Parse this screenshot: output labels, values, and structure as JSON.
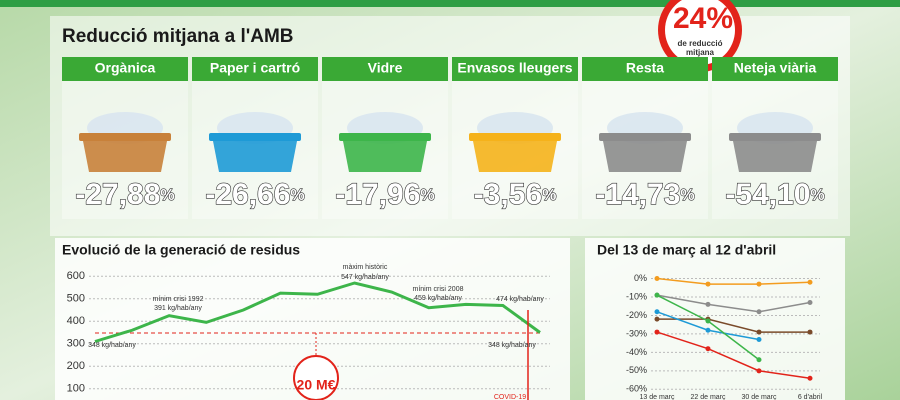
{
  "header": {
    "title": "Reducció mitjana a l'AMB",
    "badge_value": "24%",
    "badge_label": [
      "de reducció",
      "mitjana"
    ]
  },
  "cards": [
    {
      "name": "Orgànica",
      "value": "-27,88",
      "unit": "%"
    },
    {
      "name": "Paper i cartró",
      "value": "-26,66",
      "unit": "%"
    },
    {
      "name": "Vidre",
      "value": "-17,96",
      "unit": "%"
    },
    {
      "name": "Envasos lleugers",
      "value": "-3,56",
      "unit": "%"
    },
    {
      "name": "Resta",
      "value": "-14,73",
      "unit": "%"
    },
    {
      "name": "Neteja viària",
      "value": "-54,10",
      "unit": "%"
    }
  ],
  "chart_data": [
    {
      "type": "line",
      "title": "Evolució de la generació de residus",
      "categories": [
        null,
        null,
        null,
        null,
        null,
        null,
        null,
        null,
        null,
        null,
        null,
        null,
        null
      ],
      "series": [
        {
          "color": "#3db54a",
          "values": [
            310,
            360,
            425,
            395,
            450,
            525,
            520,
            570,
            530,
            460,
            475,
            470,
            350
          ]
        }
      ],
      "threshold": 348,
      "ylim": [
        50,
        650
      ],
      "yticks": [
        100,
        200,
        300,
        400,
        500,
        600
      ],
      "grid": true,
      "annotations": [
        "mínim crisi 1992",
        "391 kg/hab/any",
        "màxim històric",
        "547 kg/hab/any",
        "mínim crisi 2008",
        "459 kg/hab/any",
        "474 kg/hab/any",
        "348 kg/hab/any",
        "348 kg/hab/any",
        "COVID-19",
        "20 M€"
      ]
    },
    {
      "type": "line",
      "title": "Del 13 de març al 12 d'abril",
      "categories": [
        "13 de març",
        "22 de març",
        "30 de març",
        "6 d'abril"
      ],
      "series": [
        {
          "color": "#f39c1f",
          "values": [
            0,
            -3,
            -3,
            -2
          ]
        },
        {
          "color": "#8c8c8c",
          "values": [
            -9,
            -14,
            -18,
            -13
          ]
        },
        {
          "color": "#7a4a2a",
          "values": [
            -22,
            -22,
            -29,
            -29
          ]
        },
        {
          "color": "#1e9ad6",
          "values": [
            -18,
            -28,
            -33,
            null
          ]
        },
        {
          "color": "#3db54a",
          "values": [
            -9,
            -23,
            -44,
            null
          ]
        },
        {
          "color": "#e2231a",
          "values": [
            -29,
            -38,
            -50,
            -54
          ]
        }
      ],
      "ylim": [
        -62,
        3
      ],
      "yticks": [
        {
          "value": 0,
          "label": "0%"
        },
        {
          "value": -10,
          "label": "-10%"
        },
        {
          "value": -20,
          "label": "-20%"
        },
        {
          "value": -30,
          "label": "-30%"
        },
        {
          "value": -40,
          "label": "-40%"
        },
        {
          "value": -50,
          "label": "-50%"
        },
        {
          "value": -60,
          "label": "-60%"
        }
      ],
      "grid": true
    }
  ]
}
